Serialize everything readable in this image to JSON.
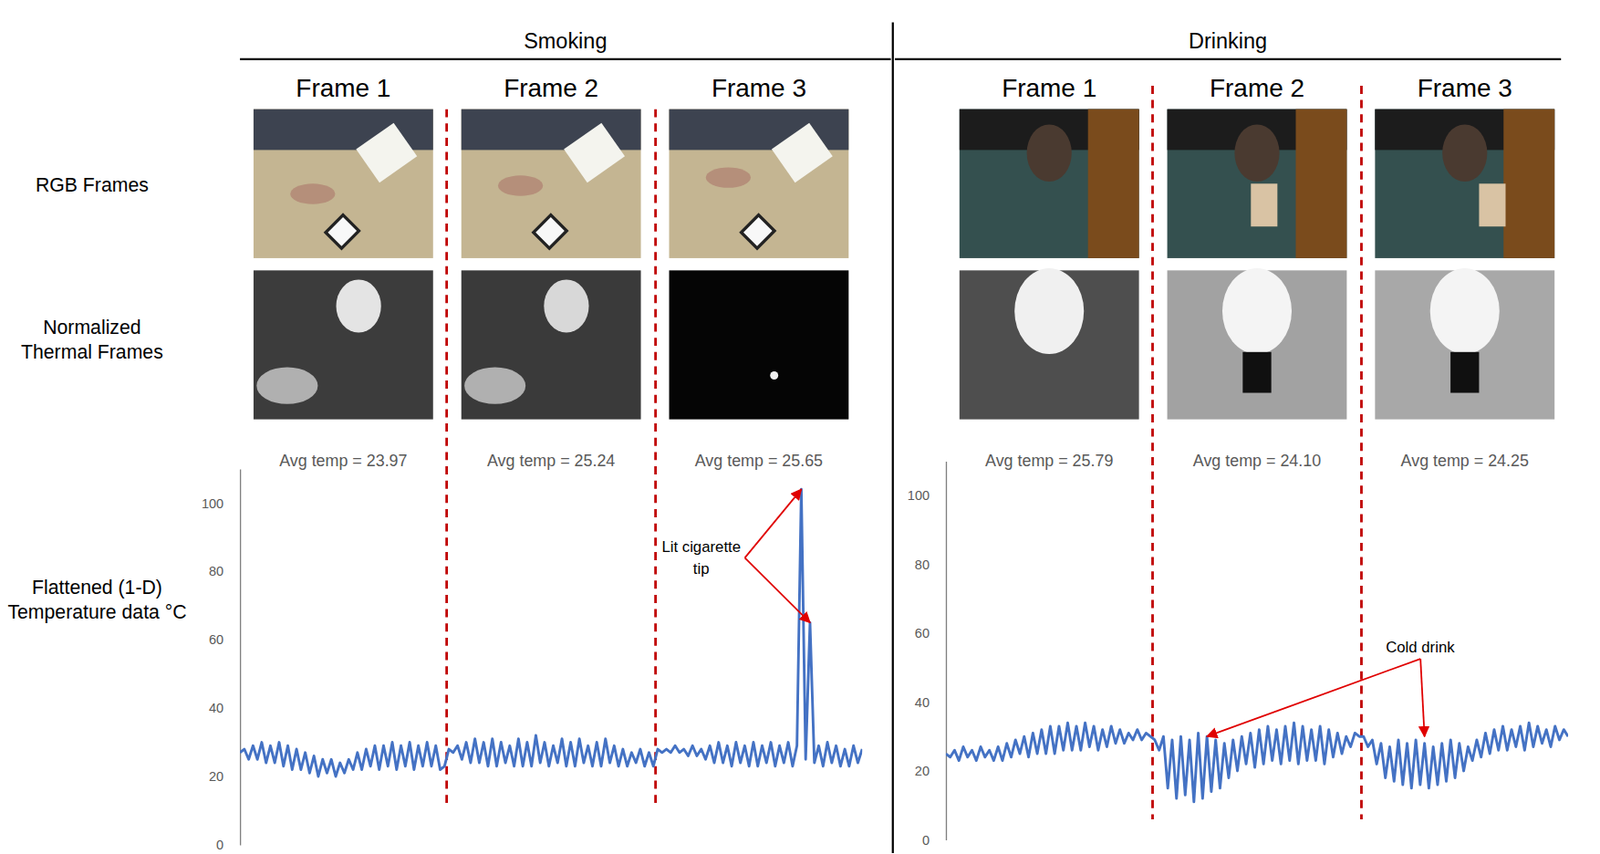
{
  "row_labels": [
    [
      "RGB Frames"
    ],
    [
      "Normalized",
      "Thermal Frames"
    ]
  ],
  "chart_data": [
    {
      "type": "line",
      "title": "Smoking",
      "frames": [
        "Frame 1",
        "Frame 2",
        "Frame 3"
      ],
      "frame_avg_temps": [
        "Avg temp = 23.97",
        "Avg temp = 25.24",
        "Avg temp = 25.65"
      ],
      "y_label": [
        "Flattened (1-D)",
        "Temperature data °C"
      ],
      "xlim": [
        0,
        143
      ],
      "ylim": [
        0,
        110
      ],
      "yticks": [
        0,
        20,
        40,
        60,
        80,
        100
      ],
      "tick_labels": "y",
      "dividers": [
        47.5,
        95.5
      ],
      "color": "#4472c4",
      "values": [
        27,
        28,
        25,
        29,
        25,
        30,
        24,
        29,
        24,
        30,
        23,
        29,
        22,
        28,
        22,
        27,
        21,
        26,
        20,
        25,
        21,
        25,
        20,
        24,
        21,
        25,
        22,
        27,
        22,
        28,
        23,
        29,
        22,
        29,
        23,
        30,
        22,
        29,
        23,
        30,
        22,
        29,
        23,
        30,
        23,
        29,
        22,
        23,
        28,
        27,
        29,
        25,
        30,
        24,
        31,
        24,
        30,
        23,
        31,
        23,
        30,
        24,
        29,
        23,
        31,
        23,
        30,
        23,
        32,
        24,
        30,
        23,
        29,
        24,
        31,
        23,
        30,
        23,
        31,
        24,
        29,
        23,
        30,
        23,
        31,
        24,
        29,
        23,
        28,
        23,
        27,
        24,
        28,
        23,
        27,
        23,
        28,
        27,
        28,
        27,
        29,
        27,
        28,
        26,
        29,
        26,
        28,
        25,
        29,
        24,
        30,
        24,
        29,
        23,
        30,
        24,
        29,
        23,
        30,
        23,
        29,
        24,
        30,
        23,
        29,
        24,
        30,
        23,
        29,
        104,
        25,
        65,
        24,
        29,
        23,
        30,
        24,
        29,
        23,
        28,
        23,
        29,
        24,
        28
      ],
      "annotations": [
        {
          "text": [
            "Lit cigarette",
            "tip"
          ],
          "x": 106,
          "y": 84,
          "targets": [
            [
              129,
              104
            ],
            [
              131,
              65
            ]
          ]
        }
      ]
    },
    {
      "type": "line",
      "title": "Drinking",
      "frames": [
        "Frame 1",
        "Frame 2",
        "Frame 3"
      ],
      "frame_avg_temps": [
        "Avg temp = 25.79",
        "Avg temp = 24.10",
        "Avg temp = 24.25"
      ],
      "xlim": [
        0,
        143
      ],
      "ylim": [
        0,
        110
      ],
      "yticks": [
        0,
        20,
        40,
        60,
        80,
        100
      ],
      "tick_labels": "y",
      "dividers": [
        47.5,
        95.5
      ],
      "color": "#4472c4",
      "values": [
        25,
        24,
        26,
        23,
        27,
        24,
        26,
        23,
        27,
        24,
        26,
        23,
        27,
        23,
        28,
        24,
        29,
        25,
        30,
        24,
        31,
        25,
        32,
        25,
        33,
        25,
        33,
        26,
        34,
        26,
        33,
        26,
        34,
        27,
        33,
        26,
        32,
        27,
        33,
        28,
        32,
        28,
        31,
        29,
        32,
        29,
        31,
        30,
        29,
        26,
        30,
        15,
        29,
        12,
        30,
        13,
        29,
        11,
        31,
        12,
        30,
        14,
        29,
        15,
        28,
        18,
        29,
        20,
        30,
        22,
        31,
        21,
        32,
        22,
        33,
        23,
        32,
        22,
        33,
        23,
        34,
        22,
        33,
        23,
        32,
        23,
        33,
        22,
        32,
        24,
        31,
        25,
        30,
        27,
        31,
        30,
        30,
        27,
        29,
        22,
        28,
        18,
        27,
        17,
        29,
        16,
        28,
        15,
        29,
        16,
        28,
        15,
        27,
        16,
        28,
        17,
        29,
        18,
        28,
        20,
        27,
        23,
        29,
        24,
        31,
        25,
        32,
        26,
        33,
        26,
        32,
        27,
        33,
        26,
        34,
        27,
        33,
        28,
        32,
        27,
        33,
        29,
        32,
        30
      ],
      "annotations": [
        {
          "text": [
            "Cold drink"
          ],
          "x": 109,
          "y": 56,
          "targets": [
            [
              60,
              30
            ],
            [
              110,
              30
            ]
          ]
        }
      ]
    }
  ]
}
